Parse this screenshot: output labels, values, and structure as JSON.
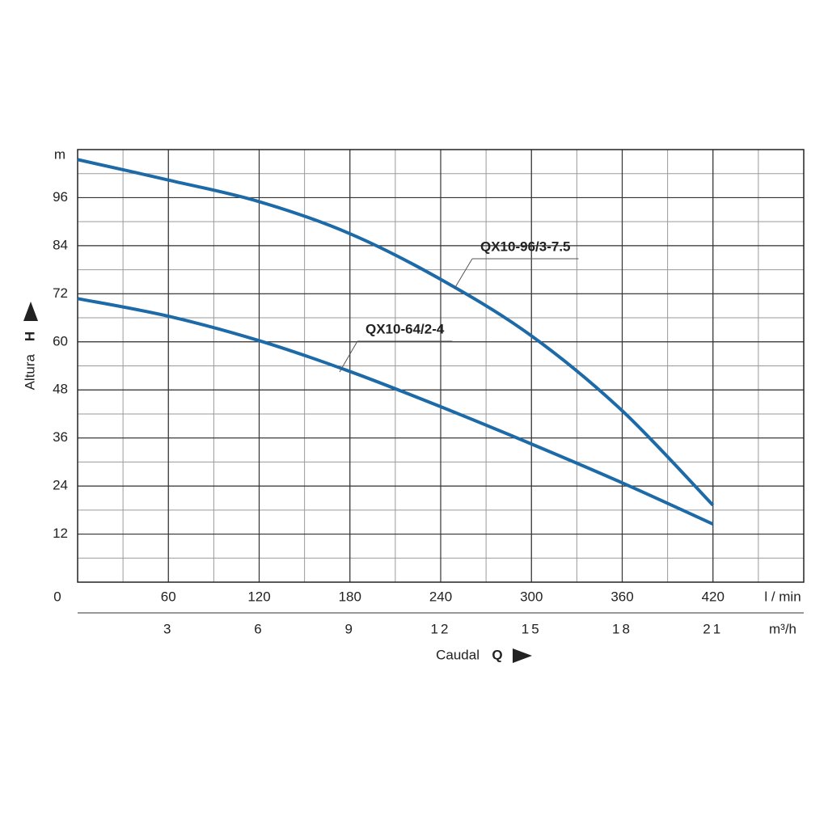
{
  "chart_data": {
    "type": "line",
    "x": [
      0,
      60,
      120,
      180,
      240,
      300,
      360,
      420
    ],
    "series": [
      {
        "name": "QX10-96/3-7.5",
        "color": "#1d6aa8",
        "values": [
          105.5,
          100.4,
          95,
          87,
          75.6,
          61.5,
          42.8,
          19.2
        ]
      },
      {
        "name": "QX10-64/2-4",
        "color": "#1d6aa8",
        "values": [
          70.8,
          66.4,
          60.3,
          52.6,
          43.8,
          34.5,
          24.8,
          14.5
        ]
      }
    ],
    "xlim": [
      0,
      480
    ],
    "xticks": [
      0,
      60,
      120,
      180,
      240,
      300,
      360,
      420
    ],
    "x2lim": [
      0,
      24
    ],
    "x2ticks": [
      3,
      6,
      9,
      12,
      15,
      18,
      21
    ],
    "ylim": [
      0,
      108
    ],
    "yticks": [
      12,
      24,
      36,
      48,
      60,
      72,
      84,
      96
    ],
    "x_unit": "l / min",
    "x2_unit": "m³/h",
    "y_unit": "m",
    "x_label": "Caudal",
    "x_symbol": "Q",
    "y_label": "Altura",
    "y_symbol": "H",
    "grid": true
  }
}
